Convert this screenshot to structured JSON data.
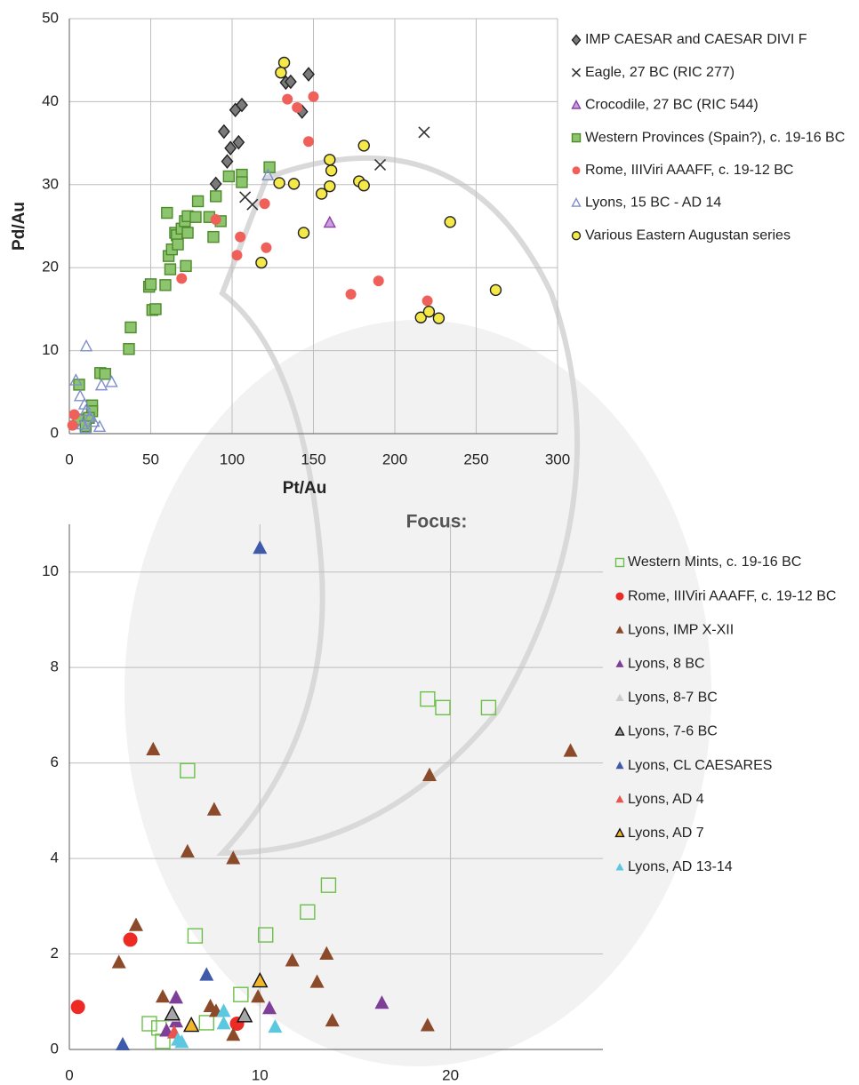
{
  "chart_data": [
    {
      "type": "scatter",
      "x_label": "Pt/Au",
      "y_label": "Pd/Au",
      "xlim": [
        0,
        300
      ],
      "ylim": [
        0,
        50
      ],
      "xticks": [
        0,
        50,
        100,
        150,
        200,
        250,
        300
      ],
      "yticks": [
        0,
        10,
        20,
        30,
        40,
        50
      ],
      "grid": true,
      "series": [
        {
          "name": "IMP CAESAR and CAESAR DIVI F",
          "marker": "diamond",
          "color": "#7a7a7a",
          "edgecolor": "#222",
          "x": [
            95,
            97,
            99,
            102,
            104,
            106,
            90,
            133,
            136,
            143,
            147
          ],
          "values": [
            36.4,
            32.8,
            34.4,
            39,
            35.1,
            39.6,
            30.1,
            42.3,
            42.4,
            38.8,
            43.3
          ]
        },
        {
          "name": "Eagle, 27 BC (RIC 277)",
          "marker": "x",
          "color": "#333",
          "edgecolor": "#333",
          "x": [
            108,
            112.5,
            191,
            218
          ],
          "values": [
            28.5,
            27.6,
            32.4,
            36.3
          ]
        },
        {
          "name": "Crocodile, 27 BC (RIC 544)",
          "marker": "triangle",
          "color": "#c9a0dc",
          "edgecolor": "#8b3fa8",
          "x": [
            160
          ],
          "values": [
            25.4
          ]
        },
        {
          "name": "Western Provinces (Spain?), c. 19-16 BC",
          "marker": "square",
          "color": "#8dc56e",
          "edgecolor": "#4c8a2c",
          "x": [
            36.6,
            37.7,
            49,
            50,
            51,
            53,
            59,
            60,
            61,
            62,
            63,
            65,
            66,
            66.7,
            69,
            71,
            71.6,
            72.7,
            72.7,
            77.6,
            79,
            86,
            90,
            88.5,
            93,
            98,
            106,
            106,
            123,
            6,
            19,
            22,
            14,
            14,
            12,
            5.5,
            10
          ],
          "values": [
            10.2,
            12.8,
            17.7,
            18,
            14.9,
            15,
            17.9,
            26.6,
            21.4,
            19.8,
            22.2,
            24.2,
            23.9,
            22.8,
            24.7,
            25.6,
            20.2,
            26.2,
            24.2,
            26.1,
            28,
            26.1,
            28.6,
            23.7,
            25.6,
            31,
            31.2,
            30.3,
            32.1,
            5.9,
            7.3,
            7.2,
            3.4,
            2.7,
            1.9,
            1.7,
            0.9
          ]
        },
        {
          "name": "Rome, IIIViri AAAFF, c. 19-12 BC",
          "marker": "circle",
          "color": "#f0605a",
          "edgecolor": "none",
          "x": [
            2,
            3,
            69,
            90,
            103,
            105,
            120,
            121,
            134,
            140,
            147,
            150,
            173,
            190,
            220
          ],
          "values": [
            1.0,
            2.3,
            18.7,
            25.8,
            21.5,
            23.7,
            27.7,
            22.4,
            40.3,
            39.3,
            35.2,
            40.6,
            16.8,
            18.4,
            16.0
          ]
        },
        {
          "name": "Lyons, 15 BC - AD 14",
          "marker": "triangle",
          "color": "none",
          "edgecolor": "#7f8fc8",
          "x": [
            10.4,
            19.7,
            26,
            4,
            6.6,
            9.3,
            10,
            12.6,
            15,
            18.6,
            122,
            10,
            8
          ],
          "values": [
            10.5,
            5.8,
            6.2,
            6.4,
            4.5,
            3.5,
            2.7,
            2.0,
            1.4,
            0.8,
            31.1,
            0.6,
            1.1
          ]
        },
        {
          "name": "Various Eastern Augustan series",
          "marker": "circle",
          "color": "#f5e94a",
          "edgecolor": "#222",
          "x": [
            132,
            130,
            129,
            138,
            144,
            118,
            155,
            160,
            161,
            160,
            178,
            181,
            181,
            216,
            221,
            227,
            234,
            262
          ],
          "values": [
            44.7,
            43.5,
            30.2,
            30.1,
            24.2,
            20.6,
            28.9,
            29.8,
            31.7,
            33,
            30.4,
            29.9,
            34.7,
            14.0,
            14.7,
            13.9,
            25.5,
            17.3
          ]
        }
      ]
    },
    {
      "type": "scatter",
      "title": "Focus:",
      "xlim": [
        0,
        28
      ],
      "ylim": [
        0,
        11
      ],
      "xticks": [
        0,
        10,
        20
      ],
      "yticks": [
        0,
        2,
        4,
        6,
        8,
        10
      ],
      "grid": true,
      "series": [
        {
          "name": "Western Mints, c. 19-16 BC",
          "marker": "square",
          "color": "none",
          "edgecolor": "#6cc04a",
          "x": [
            4.2,
            4.7,
            4.9,
            6.2,
            6.6,
            7.2,
            9.0,
            10.3,
            12.5,
            13.6,
            18.8,
            19.6,
            22
          ],
          "values": [
            0.54,
            0.45,
            0.17,
            5.84,
            2.38,
            0.56,
            1.15,
            2.4,
            2.88,
            3.44,
            7.34,
            7.16,
            7.16
          ]
        },
        {
          "name": "Rome, IIIViri AAAFF, c. 19-12 BC",
          "marker": "circle",
          "color": "#ee2a24",
          "edgecolor": "none",
          "x": [
            0.45,
            3.2,
            8.8
          ],
          "values": [
            0.89,
            2.3,
            0.54
          ]
        },
        {
          "name": "Lyons, IMP X-XII",
          "marker": "triangle",
          "color": "#8b4a2a",
          "edgecolor": "none",
          "x": [
            2.6,
            3.5,
            4.4,
            4.9,
            6.2,
            7.6,
            7.4,
            7.7,
            8.6,
            8.6,
            9.9,
            11.7,
            13,
            13.5,
            13.8,
            18.9,
            18.8,
            26.3
          ],
          "values": [
            1.82,
            2.6,
            6.28,
            1.1,
            4.14,
            5.02,
            0.9,
            0.8,
            4.0,
            0.3,
            1.1,
            1.86,
            1.41,
            2.0,
            0.6,
            5.74,
            0.5,
            6.25
          ]
        },
        {
          "name": "Lyons, 8 BC",
          "marker": "triangle",
          "color": "#7d3f98",
          "edgecolor": "none",
          "x": [
            5.6,
            5.1,
            10.5,
            16.4,
            5.6
          ],
          "values": [
            1.08,
            0.39,
            0.86,
            0.97,
            0.58
          ]
        },
        {
          "name": "Lyons, 8-7 BC",
          "marker": "triangle",
          "color": "#cccccc",
          "edgecolor": "none",
          "x": [
            5.4
          ],
          "values": [
            0.7
          ]
        },
        {
          "name": "Lyons, 7-6 BC",
          "marker": "triangle",
          "color": "#a6a6a6",
          "edgecolor": "#111",
          "x": [
            5.4,
            9.2
          ],
          "values": [
            0.74,
            0.7
          ]
        },
        {
          "name": "Lyons, CL CAESARES",
          "marker": "triangle",
          "color": "#3f5aa8",
          "edgecolor": "none",
          "x": [
            2.8,
            7.2,
            10
          ],
          "values": [
            0.1,
            1.56,
            10.5
          ]
        },
        {
          "name": "Lyons, AD 4",
          "marker": "triangle",
          "color": "#e8554f",
          "edgecolor": "none",
          "x": [
            5.5
          ],
          "values": [
            0.35
          ]
        },
        {
          "name": "Lyons, AD 7",
          "marker": "triangle",
          "color": "#f2b62b",
          "edgecolor": "#111",
          "x": [
            6.4,
            10
          ],
          "values": [
            0.5,
            1.43
          ]
        },
        {
          "name": "Lyons, AD 13-14",
          "marker": "triangle",
          "color": "#5cc8e0",
          "edgecolor": "none",
          "x": [
            5.7,
            5.9,
            8.1,
            8.1,
            10.8
          ],
          "values": [
            0.2,
            0.15,
            0.8,
            0.54,
            0.47
          ]
        }
      ]
    }
  ]
}
